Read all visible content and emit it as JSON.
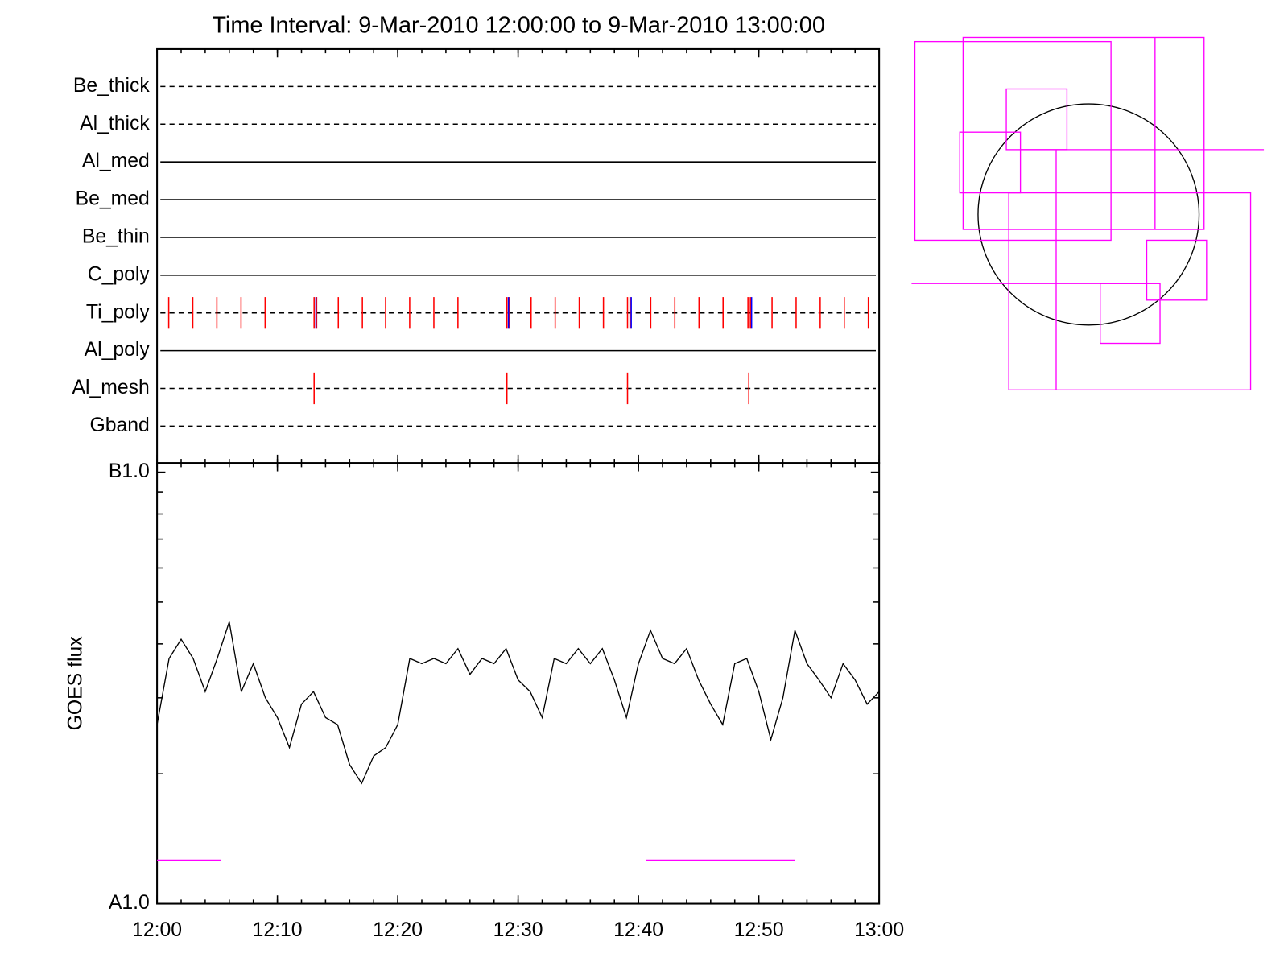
{
  "chart_data": [
    {
      "type": "timeline",
      "title": "Time Interval:  9-Mar-2010 12:00:00 to  9-Mar-2010 13:00:00",
      "categories": [
        "Be_thick",
        "Al_thick",
        "Al_med",
        "Be_med",
        "Be_thin",
        "C_poly",
        "Ti_poly",
        "Al_poly",
        "Al_mesh",
        "Gband"
      ],
      "line_styles": [
        "dashed",
        "dashed",
        "solid",
        "solid",
        "solid",
        "solid",
        "dashed",
        "solid",
        "dashed",
        "dashed"
      ],
      "xlim": [
        0,
        60
      ],
      "series": [
        {
          "color": "#ff0000",
          "values": [
            [],
            [],
            [],
            [],
            [],
            [],
            [
              0.97,
              2.97,
              4.97,
              6.98,
              8.98,
              13.05,
              13.26,
              15.06,
              17.06,
              18.99,
              20.99,
              23.0,
              25.0,
              29.07,
              29.28,
              31.08,
              33.08,
              35.08,
              37.09,
              39.09,
              39.3,
              41.02,
              43.02,
              45.03,
              47.03,
              49.1,
              49.3,
              51.1,
              53.1,
              55.1,
              57.1,
              59.1
            ],
            [],
            [
              13.05,
              29.07,
              39.09,
              49.17
            ],
            []
          ]
        },
        {
          "color": "#0000ff",
          "values": [
            [],
            [],
            [],
            [],
            [],
            [],
            [
              13.2,
              29.2,
              39.4,
              49.4
            ],
            [],
            [],
            []
          ]
        }
      ]
    },
    {
      "type": "line",
      "ylabel": "GOES flux",
      "color": "#000000",
      "log_y": true,
      "x": [
        0,
        1,
        2,
        3,
        4,
        5,
        6,
        7,
        8,
        9,
        10,
        11,
        12,
        13,
        14,
        15,
        16,
        17,
        18,
        19,
        20,
        21,
        22,
        23,
        24,
        25,
        26,
        27,
        28,
        29,
        30,
        31,
        32,
        33,
        34,
        35,
        36,
        37,
        38,
        39,
        40,
        41,
        42,
        43,
        44,
        45,
        46,
        47,
        48,
        49,
        50,
        51,
        52,
        53,
        54,
        55,
        56,
        57,
        58,
        59,
        60
      ],
      "values": [
        2.6e-08,
        3.7e-08,
        4.1e-08,
        3.7e-08,
        3.1e-08,
        3.7e-08,
        4.5e-08,
        3.1e-08,
        3.6e-08,
        3e-08,
        2.7e-08,
        2.3e-08,
        2.9e-08,
        3.1e-08,
        2.7e-08,
        2.6e-08,
        2.1e-08,
        1.9e-08,
        2.2e-08,
        2.3e-08,
        2.6e-08,
        3.7e-08,
        3.6e-08,
        3.7e-08,
        3.6e-08,
        3.9e-08,
        3.4e-08,
        3.7e-08,
        3.6e-08,
        3.9e-08,
        3.3e-08,
        3.1e-08,
        2.7e-08,
        3.7e-08,
        3.6e-08,
        3.9e-08,
        3.6e-08,
        3.9e-08,
        3.3e-08,
        2.7e-08,
        3.6e-08,
        4.3e-08,
        3.7e-08,
        3.6e-08,
        3.9e-08,
        3.3e-08,
        2.9e-08,
        2.6e-08,
        3.6e-08,
        3.7e-08,
        3.1e-08,
        2.4e-08,
        3e-08,
        4.3e-08,
        3.6e-08,
        3.3e-08,
        3e-08,
        3.6e-08,
        3.3e-08,
        2.9e-08,
        3.1e-08
      ],
      "xlim": [
        0,
        60
      ],
      "xticks": [
        {
          "value": 0,
          "label": "12:00"
        },
        {
          "value": 10,
          "label": "12:10"
        },
        {
          "value": 20,
          "label": "12:20"
        },
        {
          "value": 30,
          "label": "12:30"
        },
        {
          "value": 40,
          "label": "12:40"
        },
        {
          "value": 50,
          "label": "12:50"
        },
        {
          "value": 60,
          "label": "13:00"
        }
      ],
      "xminor_step": 2,
      "ylim": [
        1e-08,
        1e-07
      ],
      "yticks": [
        {
          "value": 1e-08,
          "label": "A1.0"
        },
        {
          "value": 1e-07,
          "label": "B1.0"
        }
      ],
      "intervals": [
        {
          "start": 0,
          "end": 5.3
        },
        {
          "start": 40.6,
          "end": 53.0
        }
      ],
      "interval_level": 1.26e-08,
      "interval_color": "#ff00ff"
    }
  ]
}
